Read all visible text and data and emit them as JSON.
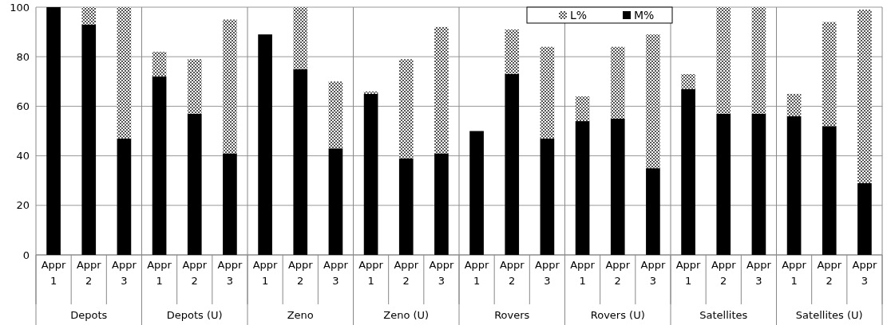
{
  "chart_data": {
    "type": "bar",
    "stacked": true,
    "categories": [
      "Appr 1",
      "Appr 2",
      "Appr 3",
      "Appr 1",
      "Appr 2",
      "Appr 3",
      "Appr 1",
      "Appr 2",
      "Appr 3",
      "Appr 1",
      "Appr 2",
      "Appr 3",
      "Appr 1",
      "Appr 2",
      "Appr 3",
      "Appr 1",
      "Appr 2",
      "Appr 3",
      "Appr 1",
      "Appr 2",
      "Appr 3",
      "Appr 1",
      "Appr 2",
      "Appr 3"
    ],
    "annotations": [
      "Depots",
      "Depots (U)",
      "Zeno",
      "Zeno (U)",
      "Rovers",
      "Rovers (U)",
      "Satellites",
      "Satellites (U)"
    ],
    "series": [
      {
        "name": "M%",
        "color": "#000000",
        "values": [
          100,
          93,
          47,
          72,
          57,
          41,
          89,
          75,
          43,
          65,
          39,
          41,
          50,
          73,
          47,
          54,
          55,
          35,
          67,
          57,
          57,
          56,
          52,
          29
        ]
      },
      {
        "name": "L%",
        "color": "#555555",
        "values": [
          0,
          7,
          53,
          10,
          22,
          54,
          0,
          25,
          27,
          1,
          40,
          51,
          0,
          18,
          37,
          10,
          29,
          54,
          6,
          43,
          43,
          9,
          42,
          70
        ]
      }
    ],
    "ylim": [
      0,
      100
    ],
    "yticks": [
      0,
      20,
      40,
      60,
      80,
      100
    ],
    "grid": "y",
    "legend": "top right"
  }
}
